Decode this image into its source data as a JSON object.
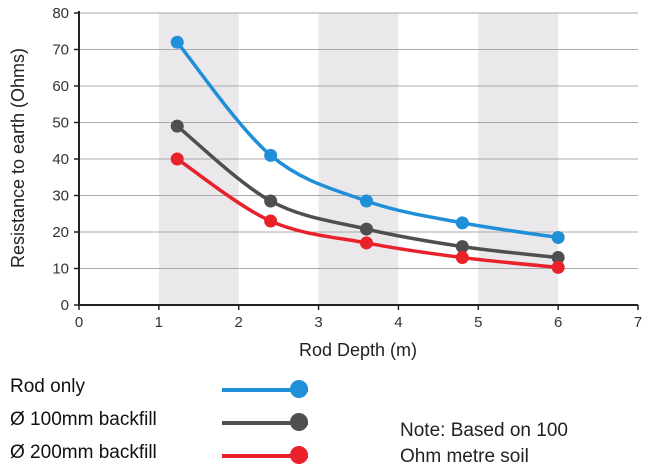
{
  "chart_data": {
    "type": "line",
    "xlabel": "Rod Depth (m)",
    "ylabel": "Resistance to earth (Ohms)",
    "xlim": [
      0,
      7
    ],
    "ylim": [
      0,
      80
    ],
    "x_ticks": [
      "0",
      "1",
      "2",
      "3",
      "4",
      "5",
      "6",
      "7"
    ],
    "y_ticks": [
      "0",
      "10",
      "20",
      "30",
      "40",
      "50",
      "60",
      "70",
      "80"
    ],
    "shaded_bands": [
      [
        1,
        2
      ],
      [
        3,
        4
      ],
      [
        5,
        6
      ]
    ],
    "grid": "horizontal",
    "legend_position": "bottom-left",
    "x": [
      1.23,
      2.4,
      3.6,
      4.8,
      6.0
    ],
    "series": [
      {
        "name": "Rod only",
        "color": "#1f8fd8",
        "values": [
          72,
          41,
          28.5,
          22.5,
          18.5
        ]
      },
      {
        "name": "Ø 100mm backfill",
        "color": "#4f4f4f",
        "values": [
          49,
          28.5,
          20.8,
          16,
          13
        ]
      },
      {
        "name": "Ø 200mm backfill",
        "color": "#e8212b",
        "values": [
          40,
          23,
          17,
          13,
          10.3
        ]
      }
    ]
  },
  "note": {
    "line1": "Note: Based on 100",
    "line2": "Ohm metre soil"
  }
}
